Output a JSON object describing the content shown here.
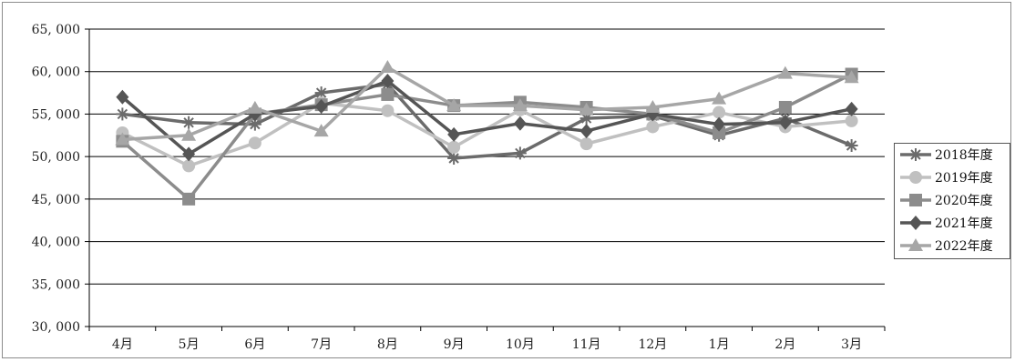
{
  "chart_data": {
    "type": "line",
    "categories": [
      "4月",
      "5月",
      "6月",
      "7月",
      "8月",
      "9月",
      "10月",
      "11月",
      "12月",
      "1月",
      "2月",
      "3月"
    ],
    "ylim": [
      30000,
      65000
    ],
    "yticks": [
      30000,
      35000,
      40000,
      45000,
      50000,
      55000,
      60000,
      65000
    ],
    "ytick_labels": [
      "30, 000",
      "35, 000",
      "40, 000",
      "45, 000",
      "50, 000",
      "55, 000",
      "60, 000",
      "65, 000"
    ],
    "grid": true,
    "legend_position": "right",
    "series": [
      {
        "name": "2018年度",
        "marker": "asterisk",
        "color": "#6b6b6b",
        "values": [
          55000,
          54000,
          53800,
          57500,
          58500,
          49800,
          50400,
          54500,
          54800,
          52500,
          54500,
          51300
        ]
      },
      {
        "name": "2019年度",
        "marker": "circle",
        "color": "#c0c0c0",
        "values": [
          52800,
          48900,
          51600,
          56300,
          55400,
          51100,
          55500,
          51500,
          53500,
          55200,
          53500,
          54200
        ]
      },
      {
        "name": "2020年度",
        "marker": "square",
        "color": "#8c8c8c",
        "values": [
          51800,
          45000,
          55000,
          56100,
          57300,
          56000,
          56400,
          55800,
          55000,
          52800,
          55800,
          59700
        ]
      },
      {
        "name": "2021年度",
        "marker": "diamond",
        "color": "#555555",
        "values": [
          57000,
          50300,
          55000,
          55900,
          58900,
          52600,
          53900,
          53000,
          55000,
          53800,
          54000,
          55600
        ]
      },
      {
        "name": "2022年度",
        "marker": "triangle",
        "color": "#a6a6a6",
        "values": [
          52000,
          52500,
          55700,
          53000,
          60500,
          56000,
          56000,
          55500,
          55800,
          56800,
          59800,
          59300
        ]
      }
    ]
  }
}
